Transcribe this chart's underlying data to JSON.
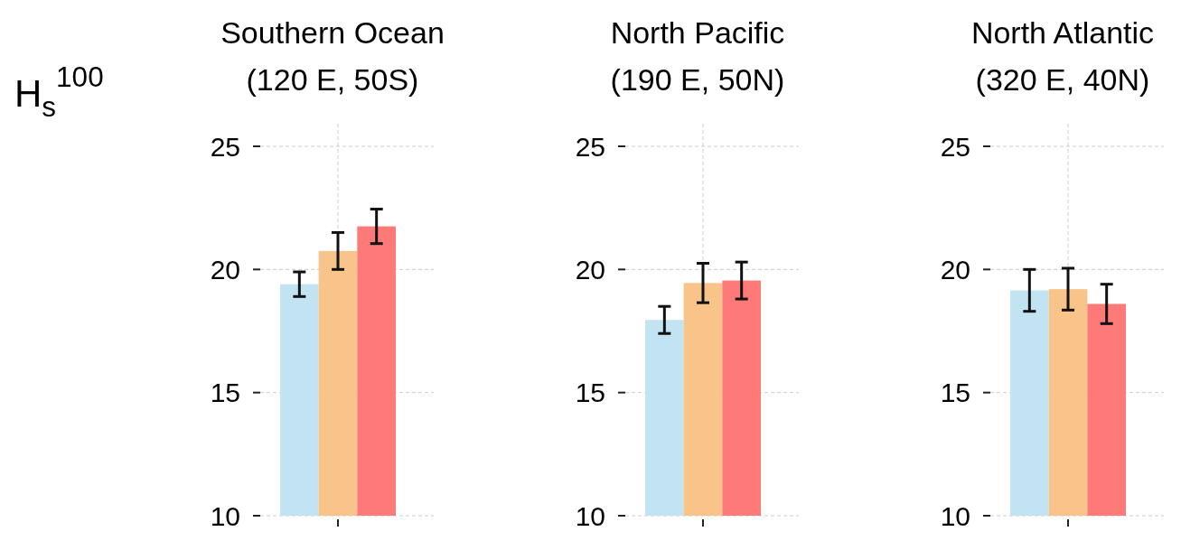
{
  "chart_data": [
    {
      "type": "bar",
      "title": "Southern Ocean",
      "subtitle": "(120 E, 50S)",
      "ylabel": "H$_{s}$$^{100}$",
      "categories": [
        null
      ],
      "ylim": [
        10,
        25
      ],
      "yticks": [
        10,
        15,
        20,
        25
      ],
      "grid": true,
      "series": [
        {
          "color": "#c2e4f2",
          "values": [
            19.4
          ],
          "errors": [
            0.5
          ]
        },
        {
          "color": "#f8c48a",
          "values": [
            20.75
          ],
          "errors": [
            0.75
          ]
        },
        {
          "color": "#fe7a78",
          "values": [
            21.75
          ],
          "errors": [
            0.7
          ]
        }
      ]
    },
    {
      "type": "bar",
      "title": "North Pacific",
      "subtitle": "(190 E, 50N)",
      "categories": [
        null
      ],
      "ylim": [
        10,
        25
      ],
      "yticks": [
        10,
        15,
        20,
        25
      ],
      "grid": true,
      "series": [
        {
          "color": "#c2e4f2",
          "values": [
            17.95
          ],
          "errors": [
            0.55
          ]
        },
        {
          "color": "#f8c48a",
          "values": [
            19.45
          ],
          "errors": [
            0.8
          ]
        },
        {
          "color": "#fe7a78",
          "values": [
            19.55
          ],
          "errors": [
            0.75
          ]
        }
      ]
    },
    {
      "type": "bar",
      "title": "North Atlantic",
      "subtitle": "(320 E, 40N)",
      "categories": [
        null
      ],
      "ylim": [
        10,
        25
      ],
      "yticks": [
        10,
        15,
        20,
        25
      ],
      "grid": true,
      "series": [
        {
          "color": "#c2e4f2",
          "values": [
            19.15
          ],
          "errors": [
            0.85
          ]
        },
        {
          "color": "#f8c48a",
          "values": [
            19.2
          ],
          "errors": [
            0.85
          ]
        },
        {
          "color": "#fe7a78",
          "values": [
            18.6
          ],
          "errors": [
            0.8
          ]
        }
      ]
    }
  ]
}
